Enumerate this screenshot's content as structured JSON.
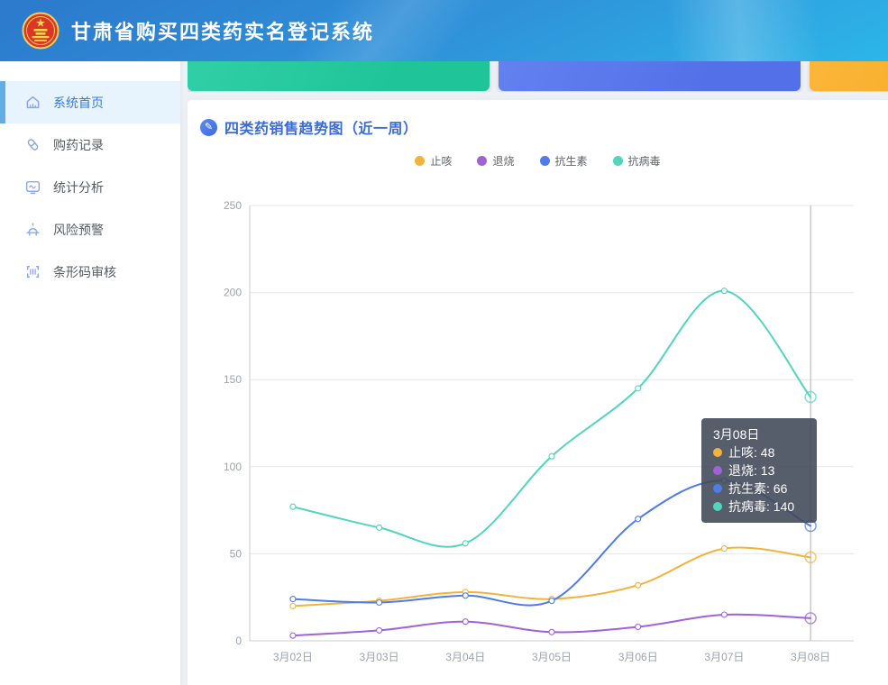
{
  "header": {
    "title": "甘肃省购买四类药实名登记系统"
  },
  "sidebar": {
    "items": [
      {
        "label": "系统首页",
        "icon": "home-icon",
        "active": true
      },
      {
        "label": "购药记录",
        "icon": "pill-icon",
        "active": false
      },
      {
        "label": "统计分析",
        "icon": "monitor-chart-icon",
        "active": false
      },
      {
        "label": "风险预警",
        "icon": "alarm-icon",
        "active": false
      },
      {
        "label": "条形码审核",
        "icon": "barcode-icon",
        "active": false
      }
    ]
  },
  "stat_cards": [
    {
      "name": "green-card",
      "gradient": [
        "#31CFA7",
        "#1FC498"
      ]
    },
    {
      "name": "blue-card",
      "gradient": [
        "#6381F0",
        "#5470E8"
      ]
    },
    {
      "name": "orange-card",
      "gradient": [
        "#FBB63A",
        "#F8A91F"
      ]
    }
  ],
  "panel": {
    "title": "四类药销售趋势图（近一周）"
  },
  "chart_data": {
    "type": "line",
    "title": "四类药销售趋势图（近一周）",
    "categories": [
      "3月02日",
      "3月03日",
      "3月04日",
      "3月05日",
      "3月06日",
      "3月07日",
      "3月08日"
    ],
    "series": [
      {
        "name": "止咳",
        "color": "#F2B33D",
        "values": [
          20,
          23,
          28,
          24,
          32,
          53,
          48
        ]
      },
      {
        "name": "退烧",
        "color": "#9F63D6",
        "values": [
          3,
          6,
          11,
          5,
          8,
          15,
          13
        ]
      },
      {
        "name": "抗生素",
        "color": "#4E7CEB",
        "values": [
          24,
          22,
          26,
          23,
          70,
          92,
          66
        ]
      },
      {
        "name": "抗病毒",
        "color": "#52D5BD",
        "values": [
          77,
          65,
          56,
          106,
          145,
          201,
          140
        ]
      }
    ],
    "xlabel": "",
    "ylabel": "",
    "ylim": [
      0,
      250
    ],
    "y_ticks": [
      0,
      50,
      100,
      150,
      200,
      250
    ],
    "grid": true,
    "smooth": true,
    "legend_position": "top",
    "hover_category": "3月08日"
  },
  "tooltip": {
    "title": "3月08日",
    "rows": [
      {
        "text": "止咳: 48",
        "color": "#F2B33D"
      },
      {
        "text": "退烧: 13",
        "color": "#9F63D6"
      },
      {
        "text": "抗生素: 66",
        "color": "#4E7CEB"
      },
      {
        "text": "抗病毒: 140",
        "color": "#52D5BD"
      }
    ]
  }
}
